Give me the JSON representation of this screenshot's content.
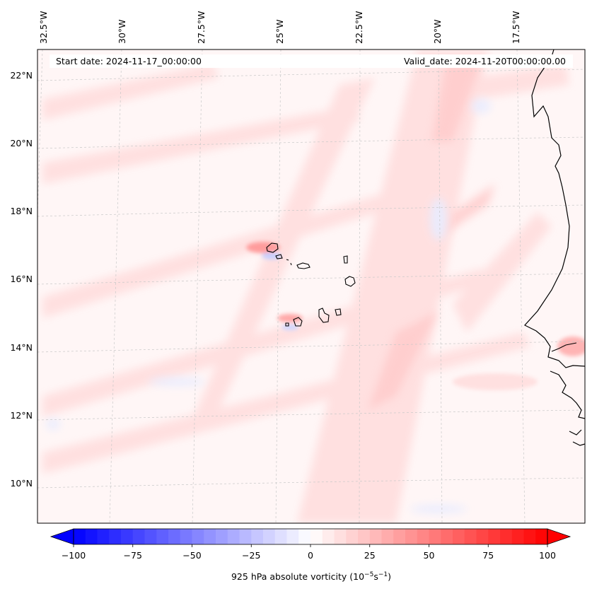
{
  "map": {
    "header": {
      "start_date": "Start date: 2024-11-17_00:00:00",
      "valid_date": "Valid_date: 2024-11-20T00:00:00.00"
    },
    "longitude_labels": [
      "32.5°W",
      "30°W",
      "27.5°W",
      "25°W",
      "22.5°W",
      "20°W",
      "17.5°W"
    ],
    "latitude_labels": [
      "22°N",
      "20°N",
      "18°N",
      "16°N",
      "14°N",
      "12°N",
      "10°N"
    ],
    "gridlines": true,
    "coastline_color": "#000000",
    "field": "925 hPa absolute vorticity",
    "colormap": [
      "#0000ff",
      "#ffffff",
      "#ff0000"
    ]
  },
  "colorbar": {
    "min": -100,
    "max": 100,
    "levels": 41,
    "extend": "both",
    "tick_labels": [
      "−100",
      "−75",
      "−50",
      "−25",
      "0",
      "25",
      "50",
      "75",
      "100"
    ],
    "label": "925 hPa absolute vorticity (10",
    "label_exp1": "−5",
    "label_mid": "s",
    "label_exp2": "−1",
    "label_close": ")"
  }
}
